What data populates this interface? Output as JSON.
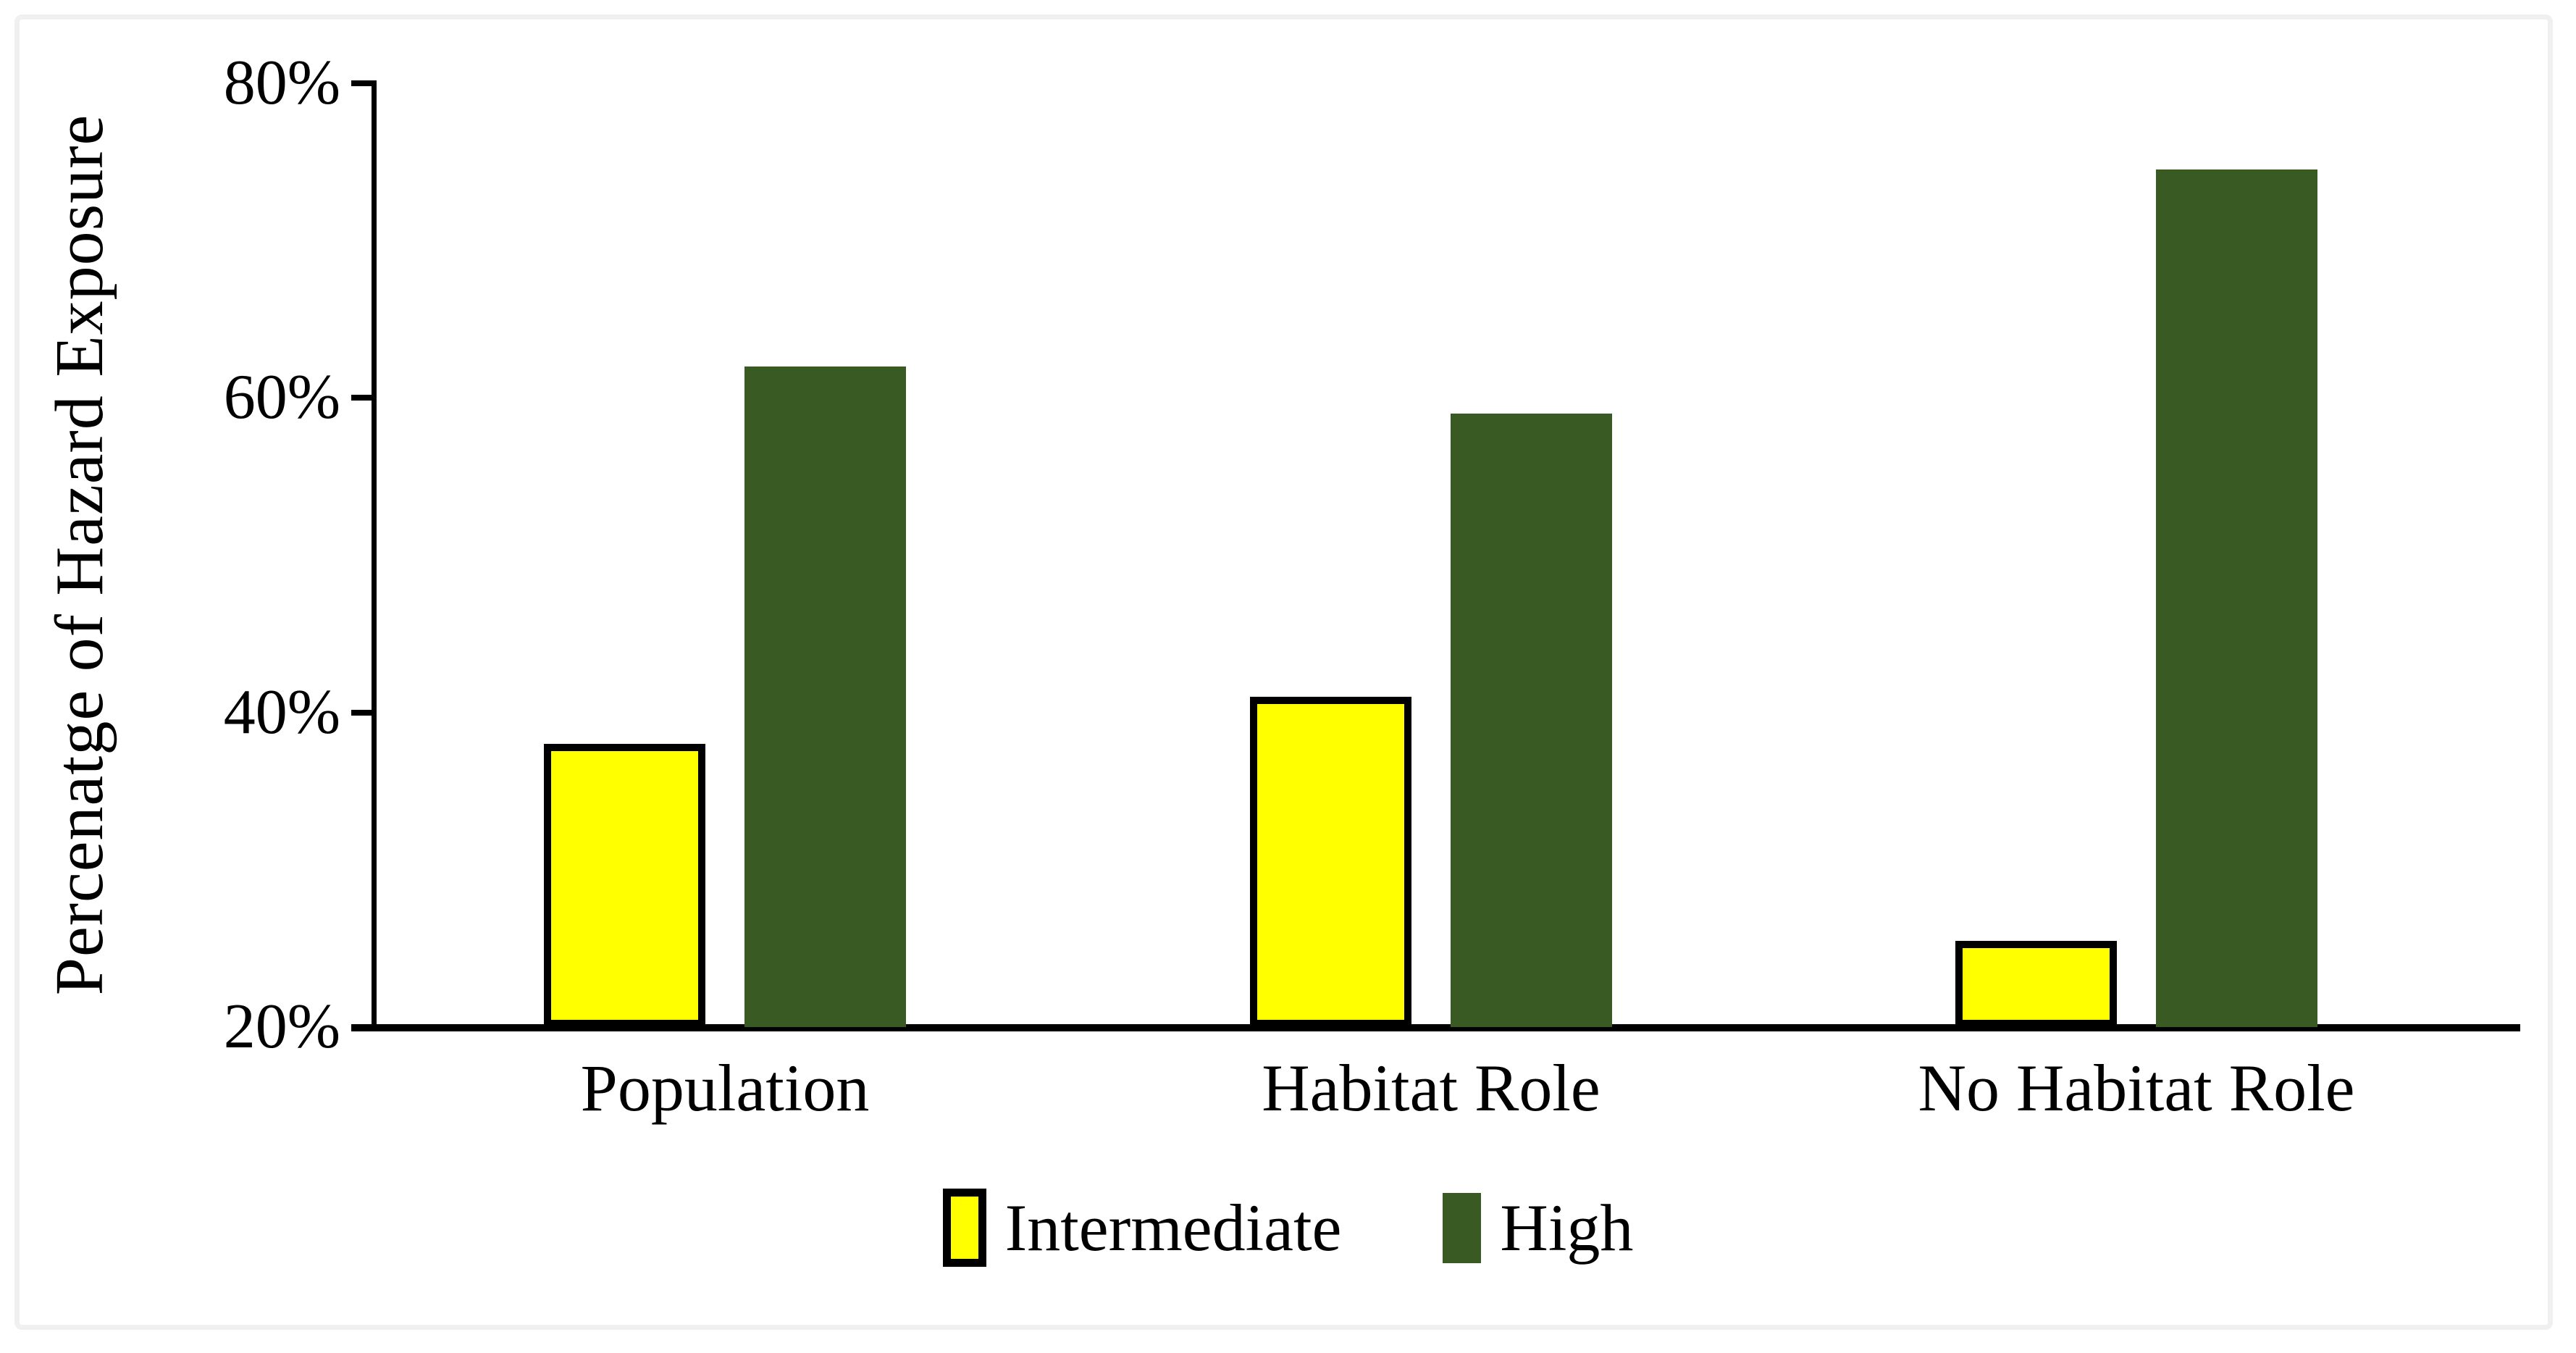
{
  "figure": {
    "background_color": "#ffffff",
    "frame_color": "#f0f0f0"
  },
  "chart_data": {
    "type": "bar",
    "title": "",
    "xlabel": "",
    "ylabel": "Percenatge of Hazard Exposure",
    "categories": [
      "Population",
      "Habitat Role",
      "No Habitat Role"
    ],
    "series": [
      {
        "name": "Intermediate",
        "color": "#ffff00",
        "border_color": "#000000",
        "values": [
          38,
          41,
          25.5
        ]
      },
      {
        "name": "High",
        "color": "#3a5a23",
        "border_color": null,
        "values": [
          62,
          59,
          74.5
        ]
      }
    ],
    "y_axis": {
      "min": 20,
      "max": 80,
      "tick_step": 20,
      "tick_labels": [
        "20%",
        "40%",
        "60%",
        "80%"
      ],
      "unit": "percent"
    },
    "grid": false,
    "legend_position": "bottom",
    "axis_color": "#000000"
  }
}
